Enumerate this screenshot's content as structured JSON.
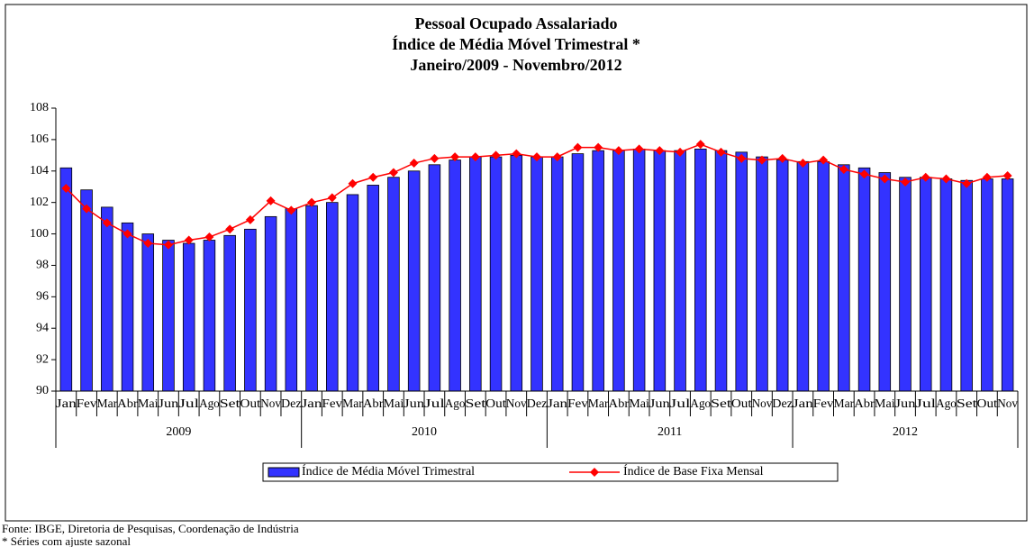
{
  "chart_data": {
    "type": "bar-line",
    "title": [
      "Pessoal Ocupado Assalariado",
      "Índice de Média Móvel Trimestral *",
      "Janeiro/2009 - Novembro/2012"
    ],
    "categories": [
      "Jan",
      "Fev",
      "Mar",
      "Abr",
      "Mai",
      "Jun",
      "Jul",
      "Ago",
      "Set",
      "Out",
      "Nov",
      "Dez",
      "Jan",
      "Fev",
      "Mar",
      "Abr",
      "Mai",
      "Jun",
      "Jul",
      "Ago",
      "Set",
      "Out",
      "Nov",
      "Dez",
      "Jan",
      "Fev",
      "Mar",
      "Abr",
      "Mai",
      "Jun",
      "Jul",
      "Ago",
      "Set",
      "Out",
      "Nov",
      "Dez",
      "Jan",
      "Fev",
      "Mar",
      "Abr",
      "Mai",
      "Jun",
      "Jul",
      "Ago",
      "Set",
      "Out",
      "Nov"
    ],
    "x_groups": [
      "2009",
      "2010",
      "2011",
      "2012"
    ],
    "series": [
      {
        "name": "Índice de Média Móvel Trimestral",
        "type": "bar",
        "color": "#3333ff",
        "values": [
          104.2,
          102.8,
          101.7,
          100.7,
          100.0,
          99.6,
          99.4,
          99.6,
          99.9,
          100.3,
          101.1,
          101.6,
          101.8,
          102.0,
          102.5,
          103.1,
          103.6,
          104.0,
          104.4,
          104.7,
          104.9,
          104.9,
          105.0,
          104.9,
          104.9,
          105.1,
          105.3,
          105.3,
          105.4,
          105.3,
          105.3,
          105.4,
          105.3,
          105.2,
          104.9,
          104.7,
          104.6,
          104.6,
          104.4,
          104.2,
          103.9,
          103.6,
          103.6,
          103.5,
          103.4,
          103.5,
          103.5
        ]
      },
      {
        "name": "Índice de Base Fixa Mensal",
        "type": "line",
        "color": "#ff0000",
        "values": [
          102.9,
          101.6,
          100.7,
          100.0,
          99.4,
          99.3,
          99.6,
          99.8,
          100.3,
          100.9,
          102.1,
          101.5,
          102.0,
          102.3,
          103.2,
          103.6,
          103.9,
          104.5,
          104.8,
          104.9,
          104.9,
          105.0,
          105.1,
          104.9,
          104.9,
          105.5,
          105.5,
          105.3,
          105.4,
          105.3,
          105.2,
          105.7,
          105.2,
          104.8,
          104.7,
          104.8,
          104.5,
          104.7,
          104.1,
          103.8,
          103.5,
          103.3,
          103.6,
          103.5,
          103.2,
          103.6,
          103.7
        ]
      }
    ],
    "ylim": [
      90,
      108
    ],
    "yticks": [
      90,
      92,
      94,
      96,
      98,
      100,
      102,
      104,
      106,
      108
    ],
    "legend": "bottom",
    "footnotes": [
      "Fonte: IBGE, Diretoria de Pesquisas, Coordenação de Indústria",
      "* Séries com ajuste sazonal"
    ]
  }
}
